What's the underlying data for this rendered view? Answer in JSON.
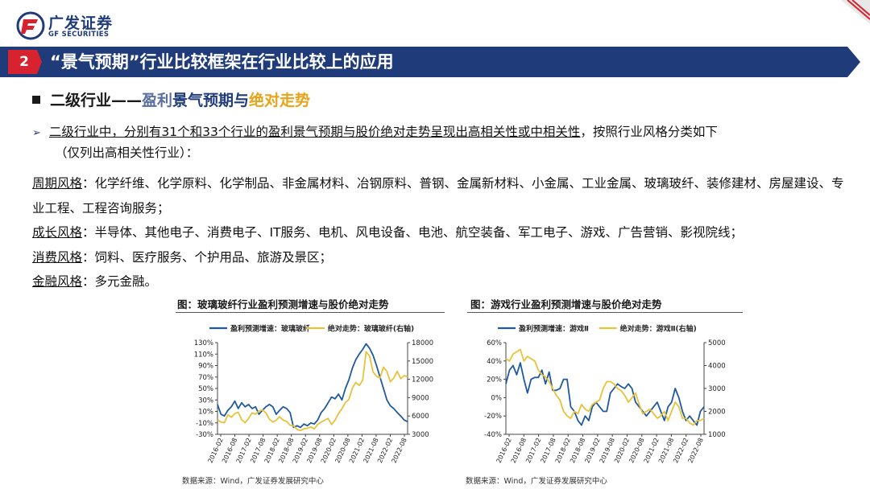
{
  "header": {
    "logo_cn": "广发证券",
    "logo_en": "GF SECURITIES",
    "slide_number": "2",
    "title": "“景气预期”行业比较框架在行业比较上的应用"
  },
  "section": {
    "part_a": "二级行业——",
    "part_b": "盈利",
    "part_c": "景气预期与",
    "part_d": "绝对走势"
  },
  "bullet": {
    "text_underlined": "二级行业中，分别有31个和33个行业的盈利景气预期与股价绝对走势呈现出高相关性或中相关性",
    "text_rest": "，按照行业风格分类如下",
    "line2": "（仅列出高相关性行业）："
  },
  "styles": [
    {
      "label": "周期风格",
      "text": "：化学纤维、化学原料、化学制品、非金属材料、冶钢原料、普钢、金属新材料、小金属、工业金属、玻璃玻纤、装修建材、房屋建设、专业工程、工程咨询服务；"
    },
    {
      "label": "成长风格",
      "text": "：半导体、其他电子、消费电子、IT服务、电机、风电设备、电池、航空装备、军工电子、游戏、广告营销、影视院线；"
    },
    {
      "label": "消费风格",
      "text": "：饲料、医疗服务、个护用品、旅游及景区；"
    },
    {
      "label": "金融风格",
      "text": "：多元金融。"
    }
  ],
  "charts_meta": [
    {
      "caption": "图：玻璃玻纤行业盈利预测增速与股价绝对走势",
      "source": "数据来源：Wind，广发证券发展研究中心"
    },
    {
      "caption": "图：游戏行业盈利预测增速与股价绝对走势",
      "source": "数据来源：Wind，广发证券发展研究中心"
    }
  ],
  "colors": {
    "navy": "#1f3b7a",
    "blue_line": "#1f5a9e",
    "gold_line": "#e8c23a",
    "logo_red": "#d7232f"
  },
  "chart_data": [
    {
      "type": "line",
      "title": "图：玻璃玻纤行业盈利预测增速与股价绝对走势",
      "legend_position": "top",
      "x_ticks": [
        "2016-02",
        "2016-08",
        "2017-02",
        "2017-08",
        "2018-02",
        "2018-08",
        "2019-02",
        "2019-08",
        "2020-02",
        "2020-08",
        "2021-02",
        "2021-08",
        "2022-02",
        "2022-08"
      ],
      "y_left": {
        "ticks": [
          "130%",
          "110%",
          "90%",
          "70%",
          "50%",
          "30%",
          "10%",
          "-10%",
          "-30%"
        ],
        "range": [
          -30,
          130
        ]
      },
      "y_right": {
        "ticks": [
          "18000",
          "15000",
          "12000",
          "9000",
          "6000",
          "3000"
        ],
        "range": [
          3000,
          18000
        ]
      },
      "series": [
        {
          "name": "盈利预测增速：玻璃玻纤",
          "axis": "left",
          "values": [
            22,
            5,
            2,
            12,
            18,
            28,
            15,
            25,
            18,
            22,
            15,
            18,
            5,
            12,
            18,
            22,
            18,
            5,
            12,
            18,
            15,
            8,
            -18,
            -15,
            -18,
            -12,
            -15,
            -10,
            -12,
            -5,
            8,
            15,
            25,
            35,
            32,
            40,
            30,
            50,
            65,
            85,
            100,
            110,
            118,
            128,
            120,
            108,
            90,
            70,
            50,
            30,
            20,
            15,
            8,
            2,
            -5,
            -8
          ]
        },
        {
          "name": "绝对走势：玻璃玻纤(右轴)",
          "axis": "right",
          "values": [
            5400,
            5000,
            4900,
            6200,
            5800,
            6400,
            6600,
            5400,
            4900,
            5600,
            6500,
            6300,
            6800,
            7000,
            6500,
            5500,
            5000,
            5300,
            5900,
            5300,
            5100,
            4500,
            4400,
            3800,
            3600,
            3900,
            4000,
            4200,
            3900,
            4600,
            5000,
            5300,
            5600,
            4600,
            5300,
            6400,
            7200,
            8200,
            8700,
            10500,
            11500,
            11000,
            11800,
            16500,
            15800,
            13200,
            12500,
            12200,
            14000,
            13300,
            11600,
            12200,
            13300,
            12100,
            12600,
            12400
          ]
        }
      ]
    },
    {
      "type": "line",
      "title": "图：游戏行业盈利预测增速与股价绝对走势",
      "legend_position": "top",
      "x_ticks": [
        "2016-02",
        "2016-08",
        "2017-02",
        "2017-08",
        "2018-02",
        "2018-08",
        "2019-02",
        "2019-08",
        "2020-02",
        "2020-08",
        "2021-02",
        "2021-08",
        "2022-02",
        "2022-08"
      ],
      "y_left": {
        "ticks": [
          "60%",
          "40%",
          "20%",
          "0%",
          "-20%",
          "-40%"
        ],
        "range": [
          -40,
          60
        ]
      },
      "y_right": {
        "ticks": [
          "5000",
          "4000",
          "3000",
          "2000",
          "1000"
        ],
        "range": [
          1000,
          5000
        ]
      },
      "series": [
        {
          "name": "盈利预测增速：游戏Ⅱ",
          "axis": "left",
          "values": [
            15,
            30,
            35,
            25,
            38,
            20,
            5,
            20,
            22,
            22,
            30,
            15,
            28,
            8,
            8,
            10,
            20,
            20,
            -10,
            -15,
            -25,
            -30,
            -20,
            -25,
            -10,
            -5,
            -10,
            -15,
            -15,
            5,
            10,
            15,
            12,
            10,
            15,
            10,
            -5,
            -10,
            -15,
            -20,
            -15,
            -10,
            -5,
            -15,
            -25,
            -10,
            -5,
            10,
            0,
            -15,
            -25,
            -20,
            -25,
            -30,
            -15,
            -10
          ]
        },
        {
          "name": "绝对走势：游戏Ⅱ(右轴)",
          "axis": "right",
          "values": [
            4300,
            4200,
            4500,
            4600,
            4700,
            4200,
            4400,
            4300,
            4200,
            3800,
            3600,
            3500,
            3300,
            3000,
            2700,
            2500,
            2000,
            1800,
            1700,
            2000,
            1900,
            2300,
            2100,
            2000,
            2300,
            2400,
            2500,
            3000,
            3300,
            3300,
            3200,
            3000,
            2900,
            2700,
            2400,
            2600,
            2800,
            2300,
            1900,
            2000,
            2100,
            1900,
            1700,
            1800,
            2000,
            1600,
            2000,
            2400,
            2200,
            1700,
            1700,
            1500,
            1400,
            1600,
            1600,
            1700
          ]
        }
      ]
    }
  ]
}
